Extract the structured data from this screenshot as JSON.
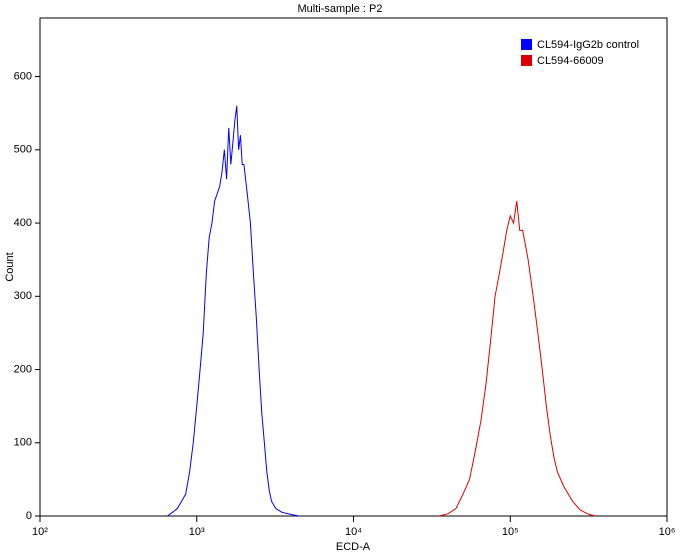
{
  "chart_data": {
    "type": "line",
    "title": "Multi-sample : P2",
    "x_label": "ECD-A",
    "y_label": "Count",
    "x_log": true,
    "xlim": [
      100,
      1000000
    ],
    "xticks": [
      {
        "value": 100,
        "label": "10²"
      },
      {
        "value": 1000,
        "label": "10³"
      },
      {
        "value": 10000,
        "label": "10⁴"
      },
      {
        "value": 100000,
        "label": "10⁵"
      },
      {
        "value": 1000000,
        "label": "10⁶"
      }
    ],
    "ylim": [
      0,
      680
    ],
    "yticks": [
      0,
      100,
      200,
      300,
      400,
      500,
      600
    ],
    "legend": "top-right",
    "series": [
      {
        "name": "CL594-IgG2b control",
        "color": "#0000ff",
        "x": [
          650,
          700,
          750,
          800,
          850,
          900,
          950,
          1000,
          1050,
          1100,
          1150,
          1200,
          1250,
          1300,
          1350,
          1400,
          1450,
          1500,
          1550,
          1600,
          1650,
          1700,
          1750,
          1800,
          1850,
          1900,
          1950,
          2000,
          2100,
          2200,
          2300,
          2400,
          2500,
          2600,
          2700,
          2800,
          2900,
          3000,
          3200,
          3500,
          4000,
          4500
        ],
        "values": [
          0,
          5,
          10,
          20,
          30,
          60,
          100,
          150,
          200,
          250,
          330,
          380,
          400,
          430,
          440,
          450,
          470,
          500,
          460,
          530,
          480,
          510,
          540,
          560,
          500,
          520,
          480,
          480,
          440,
          400,
          330,
          270,
          200,
          140,
          100,
          60,
          35,
          20,
          10,
          5,
          2,
          0
        ]
      },
      {
        "name": "CL594-66009",
        "color": "#dd0000",
        "x": [
          35000,
          40000,
          45000,
          50000,
          55000,
          60000,
          65000,
          70000,
          75000,
          80000,
          85000,
          90000,
          95000,
          100000,
          105000,
          110000,
          115000,
          120000,
          125000,
          130000,
          140000,
          150000,
          160000,
          170000,
          180000,
          190000,
          200000,
          220000,
          250000,
          280000,
          320000,
          350000
        ],
        "values": [
          0,
          3,
          10,
          30,
          50,
          90,
          130,
          180,
          240,
          300,
          330,
          360,
          390,
          410,
          400,
          430,
          390,
          390,
          370,
          350,
          300,
          250,
          200,
          150,
          110,
          80,
          60,
          40,
          20,
          8,
          2,
          0
        ]
      }
    ]
  }
}
